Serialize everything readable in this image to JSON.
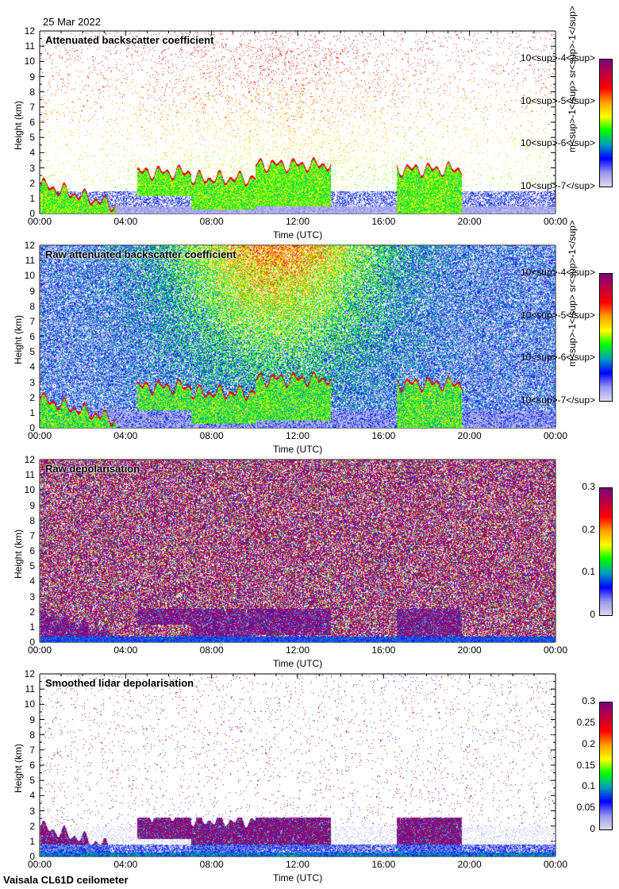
{
  "header": {
    "date": "25 Mar 2022"
  },
  "footer": {
    "instrument": "Vaisala CL61D ceilometer"
  },
  "colors": {
    "colormap": [
      "#e0dcec",
      "#9898f0",
      "#0000ff",
      "#00a0c0",
      "#00ff00",
      "#ffff00",
      "#ffa000",
      "#ff0000",
      "#c00040",
      "#800080"
    ]
  },
  "chart_data": [
    {
      "type": "heatmap",
      "title": "Attenuated backscatter coefficient",
      "xlabel": "Time (UTC)",
      "ylabel": "Height (km)",
      "xticks": [
        "00:00",
        "04:00",
        "08:00",
        "12:00",
        "16:00",
        "20:00",
        "00:00"
      ],
      "yticks": [
        "0",
        "1",
        "2",
        "3",
        "4",
        "5",
        "6",
        "7",
        "8",
        "9",
        "10",
        "11",
        "12"
      ],
      "xlim_hours": [
        0,
        24
      ],
      "ylim_km": [
        0,
        12
      ],
      "colorbar": {
        "scale": "log",
        "range": [
          1e-07,
          0.0001
        ],
        "ticks": [
          {
            "base": "10",
            "exp": "-7"
          },
          {
            "base": "10",
            "exp": "-6"
          },
          {
            "base": "10",
            "exp": "-5"
          },
          {
            "base": "10",
            "exp": "-4"
          }
        ],
        "unit": {
          "m": "m",
          "mexp": "-1",
          "sr": "sr",
          "srexp": "-1"
        }
      },
      "style": "bs"
    },
    {
      "type": "heatmap",
      "title": "Raw attenuated backscatter coefficient",
      "xlabel": "Time (UTC)",
      "ylabel": "Height (km)",
      "xticks": [
        "00:00",
        "04:00",
        "08:00",
        "12:00",
        "16:00",
        "20:00",
        "00:00"
      ],
      "yticks": [
        "0",
        "1",
        "2",
        "3",
        "4",
        "5",
        "6",
        "7",
        "8",
        "9",
        "10",
        "11",
        "12"
      ],
      "xlim_hours": [
        0,
        24
      ],
      "ylim_km": [
        0,
        12
      ],
      "colorbar": {
        "scale": "log",
        "range": [
          1e-07,
          0.0001
        ],
        "ticks": [
          {
            "base": "10",
            "exp": "-7"
          },
          {
            "base": "10",
            "exp": "-6"
          },
          {
            "base": "10",
            "exp": "-5"
          },
          {
            "base": "10",
            "exp": "-4"
          }
        ],
        "unit": {
          "m": "m",
          "mexp": "-1",
          "sr": "sr",
          "srexp": "-1"
        }
      },
      "style": "raw"
    },
    {
      "type": "heatmap",
      "title": "Raw depolarisation",
      "xlabel": "Time (UTC)",
      "ylabel": "Height (km)",
      "xticks": [
        "00:00",
        "04:00",
        "08:00",
        "12:00",
        "16:00",
        "20:00",
        "00:00"
      ],
      "yticks": [
        "0",
        "1",
        "2",
        "3",
        "4",
        "5",
        "6",
        "7",
        "8",
        "9",
        "10",
        "11",
        "12"
      ],
      "xlim_hours": [
        0,
        24
      ],
      "ylim_km": [
        0,
        12
      ],
      "colorbar": {
        "scale": "linear",
        "range": [
          0,
          0.3
        ],
        "ticks": [
          "0",
          "0.1",
          "0.2",
          "0.3"
        ]
      },
      "style": "depol"
    },
    {
      "type": "heatmap",
      "title": "Smoothed lidar depolarisation",
      "xlabel": "Time (UTC)",
      "ylabel": "Height (km)",
      "xticks": [
        "00:00",
        "04:00",
        "08:00",
        "12:00",
        "16:00",
        "20:00",
        "00:00"
      ],
      "yticks": [
        "0",
        "1",
        "2",
        "3",
        "4",
        "5",
        "6",
        "7",
        "8",
        "9",
        "10",
        "11",
        "12"
      ],
      "xlim_hours": [
        0,
        24
      ],
      "ylim_km": [
        0,
        12
      ],
      "colorbar": {
        "scale": "linear",
        "range": [
          0,
          0.3
        ],
        "ticks": [
          "0",
          "0.05",
          "0.1",
          "0.15",
          "0.2",
          "0.25",
          "0.3"
        ]
      },
      "style": "sdepol"
    }
  ]
}
